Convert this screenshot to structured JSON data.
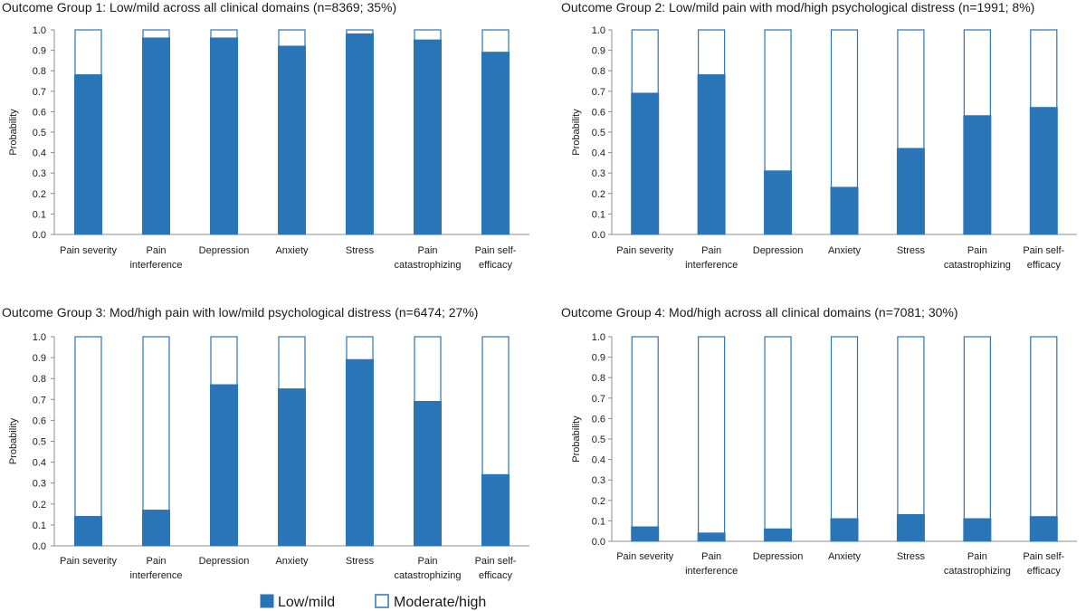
{
  "colors": {
    "low": "#2a74b8",
    "high": "#ffffff",
    "outline": "#2a74b8",
    "axis": "#8c8c8c"
  },
  "legend": {
    "low_label": "Low/mild",
    "high_label": "Moderate/high"
  },
  "chart_data": [
    {
      "type": "bar",
      "stacked": true,
      "title": "Outcome Group 1: Low/mild across all clinical domains (n=8369; 35%)",
      "ylabel": "Probability",
      "ylim": [
        0,
        1
      ],
      "yticks": [
        "0.0",
        "0.1",
        "0.2",
        "0.3",
        "0.4",
        "0.5",
        "0.6",
        "0.7",
        "0.8",
        "0.9",
        "1.0"
      ],
      "categories": [
        [
          "Pain severity"
        ],
        [
          "Pain",
          "interference"
        ],
        [
          "Depression"
        ],
        [
          "Anxiety"
        ],
        [
          "Stress"
        ],
        [
          "Pain",
          "catastrophizing"
        ],
        [
          "Pain self-",
          "efficacy"
        ]
      ],
      "series": [
        {
          "name": "Low/mild",
          "values": [
            0.78,
            0.96,
            0.96,
            0.92,
            0.98,
            0.95,
            0.89
          ]
        },
        {
          "name": "Moderate/high",
          "values": [
            0.22,
            0.04,
            0.04,
            0.08,
            0.02,
            0.05,
            0.11
          ]
        }
      ]
    },
    {
      "type": "bar",
      "stacked": true,
      "title": "Outcome Group 2: Low/mild pain with mod/high psychological distress (n=1991; 8%)",
      "ylabel": "Probability",
      "ylim": [
        0,
        1
      ],
      "yticks": [
        "0.0",
        "0.1",
        "0.2",
        "0.3",
        "0.4",
        "0.5",
        "0.6",
        "0.7",
        "0.8",
        "0.9",
        "1.0"
      ],
      "categories": [
        [
          "Pain severity"
        ],
        [
          "Pain",
          "interference"
        ],
        [
          "Depression"
        ],
        [
          "Anxiety"
        ],
        [
          "Stress"
        ],
        [
          "Pain",
          "catastrophizing"
        ],
        [
          "Pain self-",
          "efficacy"
        ]
      ],
      "series": [
        {
          "name": "Low/mild",
          "values": [
            0.69,
            0.78,
            0.31,
            0.23,
            0.42,
            0.58,
            0.62
          ]
        },
        {
          "name": "Moderate/high",
          "values": [
            0.31,
            0.22,
            0.69,
            0.77,
            0.58,
            0.42,
            0.38
          ]
        }
      ]
    },
    {
      "type": "bar",
      "stacked": true,
      "title": "Outcome Group 3: Mod/high pain with low/mild psychological distress (n=6474; 27%)",
      "ylabel": "Probability",
      "ylim": [
        0,
        1
      ],
      "yticks": [
        "0.0",
        "0.1",
        "0.2",
        "0.3",
        "0.4",
        "0.5",
        "0.6",
        "0.7",
        "0.8",
        "0.9",
        "1.0"
      ],
      "categories": [
        [
          "Pain severity"
        ],
        [
          "Pain",
          "interference"
        ],
        [
          "Depression"
        ],
        [
          "Anxiety"
        ],
        [
          "Stress"
        ],
        [
          "Pain",
          "catastrophizing"
        ],
        [
          "Pain self-",
          "efficacy"
        ]
      ],
      "series": [
        {
          "name": "Low/mild",
          "values": [
            0.14,
            0.17,
            0.77,
            0.75,
            0.89,
            0.69,
            0.34
          ]
        },
        {
          "name": "Moderate/high",
          "values": [
            0.86,
            0.83,
            0.23,
            0.25,
            0.11,
            0.31,
            0.66
          ]
        }
      ]
    },
    {
      "type": "bar",
      "stacked": true,
      "title": "Outcome Group 4: Mod/high across all clinical domains (n=7081; 30%)",
      "ylabel": "Probability",
      "ylim": [
        0,
        1
      ],
      "yticks": [
        "0.0",
        "0.1",
        "0.2",
        "0.3",
        "0.4",
        "0.5",
        "0.6",
        "0.7",
        "0.8",
        "0.9",
        "1.0"
      ],
      "categories": [
        [
          "Pain severity"
        ],
        [
          "Pain",
          "interference"
        ],
        [
          "Depression"
        ],
        [
          "Anxiety"
        ],
        [
          "Stress"
        ],
        [
          "Pain",
          "catastrophizing"
        ],
        [
          "Pain self-",
          "efficacy"
        ]
      ],
      "series": [
        {
          "name": "Low/mild",
          "values": [
            0.07,
            0.04,
            0.06,
            0.11,
            0.13,
            0.11,
            0.12
          ]
        },
        {
          "name": "Moderate/high",
          "values": [
            0.93,
            0.96,
            0.94,
            0.89,
            0.87,
            0.89,
            0.88
          ]
        }
      ]
    }
  ]
}
